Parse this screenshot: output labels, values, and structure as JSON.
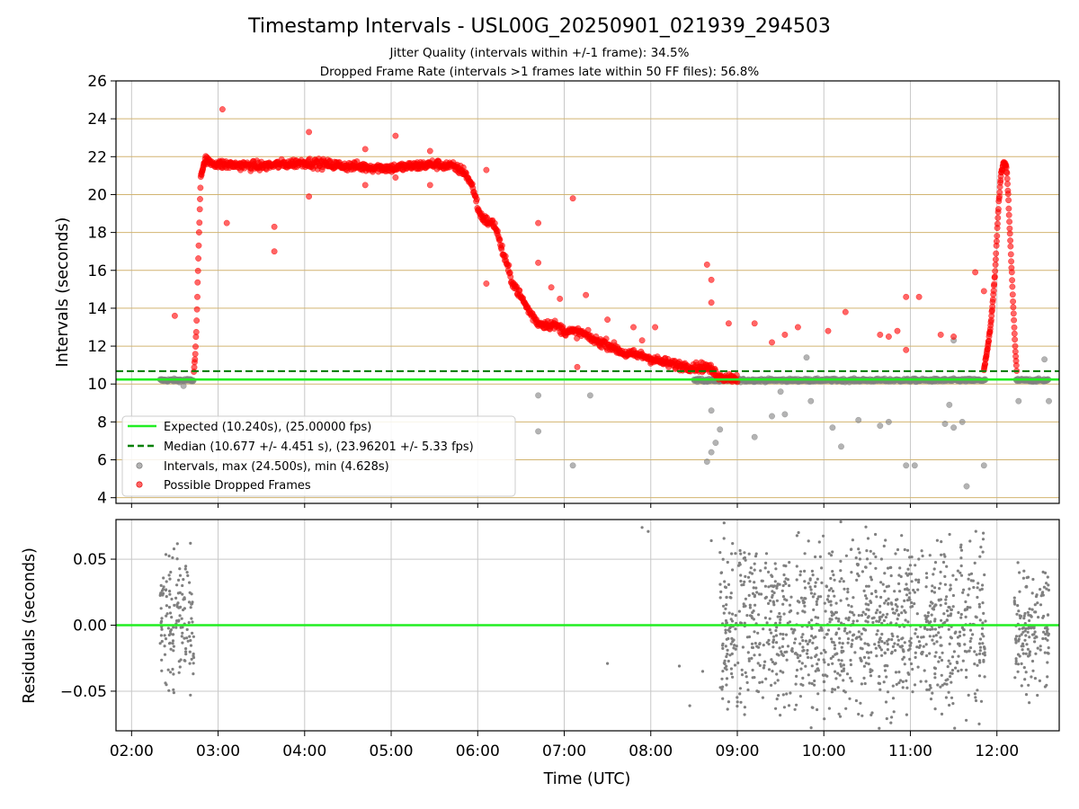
{
  "title": "Timestamp Intervals - USL00G_20250901_021939_294503",
  "subtitle_lines": [
    "Jitter Quality (intervals within +/-1 frame): 34.5%",
    "Dropped Frame Rate (intervals >1 frames late within 50 FF files): 56.8%"
  ],
  "colors": {
    "expected": "#22ee22",
    "median": "#008000",
    "intervals": "#808080",
    "dropped": "#ff0000",
    "hline_grid": "#d2b470",
    "grid": "#c8c8c8"
  },
  "chart_data": [
    {
      "type": "scatter",
      "panel": "intervals",
      "ylabel": "Intervals (seconds)",
      "xlabel": "",
      "xlim": [
        "02:00",
        "12:30"
      ],
      "ylim": [
        3.7,
        26
      ],
      "xticks": [
        "02:00",
        "03:00",
        "04:00",
        "05:00",
        "06:00",
        "07:00",
        "08:00",
        "09:00",
        "10:00",
        "11:00",
        "12:00"
      ],
      "yticks": [
        "4",
        "6",
        "8",
        "10",
        "12",
        "14",
        "16",
        "18",
        "20",
        "22",
        "24",
        "26"
      ],
      "horizontal_lines": [
        {
          "name": "Expected (10.240s), (25.00000 fps)",
          "y": 10.24,
          "style": "solid"
        },
        {
          "name": "Median (10.677 +/- 4.451 s), (23.96201 +/- 5.33 fps)",
          "y": 10.677,
          "style": "dashed"
        }
      ],
      "legend": {
        "placement": "lower-left",
        "entries": [
          "Expected (10.240s), (25.00000 fps)",
          "Median (10.677 +/- 4.451 s), (23.96201 +/- 5.33 fps)",
          "Intervals, max (24.500s), min (4.628s)",
          "Possible Dropped Frames"
        ]
      },
      "series": [
        {
          "name": "Intervals, max (24.500s), min (4.628s)",
          "description_profile": "normal intervals clustered near 10.2 s from 02:20-02:45 and 08:30-12:30 with scattered outliers",
          "outliers": [
            [
              2.6,
              9.9
            ],
            [
              6.7,
              9.4
            ],
            [
              6.7,
              7.5
            ],
            [
              7.1,
              5.7
            ],
            [
              7.3,
              9.4
            ],
            [
              8.7,
              8.6
            ],
            [
              8.65,
              5.9
            ],
            [
              8.7,
              6.4
            ],
            [
              8.75,
              6.9
            ],
            [
              8.8,
              7.6
            ],
            [
              9.2,
              7.2
            ],
            [
              9.4,
              8.3
            ],
            [
              9.55,
              8.4
            ],
            [
              9.5,
              9.6
            ],
            [
              9.8,
              11.4
            ],
            [
              9.85,
              9.1
            ],
            [
              10.1,
              7.7
            ],
            [
              10.2,
              6.7
            ],
            [
              10.4,
              8.1
            ],
            [
              10.65,
              7.8
            ],
            [
              10.75,
              8.0
            ],
            [
              10.95,
              5.7
            ],
            [
              11.05,
              5.7
            ],
            [
              11.4,
              7.9
            ],
            [
              11.45,
              8.9
            ],
            [
              11.5,
              7.7
            ],
            [
              11.65,
              4.6
            ],
            [
              11.85,
              5.7
            ],
            [
              12.25,
              9.1
            ],
            [
              12.6,
              9.1
            ],
            [
              12.55,
              11.3
            ],
            [
              11.5,
              12.3
            ],
            [
              11.6,
              8.0
            ]
          ]
        },
        {
          "name": "Possible Dropped Frames",
          "profile_points": [
            [
              2.72,
              10.6
            ],
            [
              2.73,
              11.2
            ],
            [
              2.74,
              12.0
            ],
            [
              2.75,
              13.0
            ],
            [
              2.76,
              14.6
            ],
            [
              2.77,
              16.3
            ],
            [
              2.78,
              18.0
            ],
            [
              2.79,
              19.5
            ],
            [
              2.8,
              21.0
            ],
            [
              2.85,
              21.8
            ],
            [
              3.0,
              21.6
            ],
            [
              3.5,
              21.5
            ],
            [
              4.0,
              21.7
            ],
            [
              4.5,
              21.5
            ],
            [
              5.0,
              21.4
            ],
            [
              5.5,
              21.6
            ],
            [
              5.7,
              21.5
            ],
            [
              5.85,
              21.2
            ],
            [
              5.95,
              20.3
            ],
            [
              6.02,
              19.0
            ],
            [
              6.1,
              18.6
            ],
            [
              6.2,
              18.4
            ],
            [
              6.3,
              16.8
            ],
            [
              6.4,
              15.4
            ],
            [
              6.5,
              14.6
            ],
            [
              6.6,
              13.8
            ],
            [
              6.7,
              13.2
            ],
            [
              6.9,
              13.1
            ],
            [
              7.0,
              12.8
            ],
            [
              7.2,
              12.7
            ],
            [
              7.35,
              12.3
            ],
            [
              7.5,
              12.1
            ],
            [
              7.7,
              11.6
            ],
            [
              7.9,
              11.5
            ],
            [
              8.1,
              11.2
            ],
            [
              8.3,
              11.0
            ],
            [
              8.5,
              10.9
            ],
            [
              8.65,
              10.9
            ],
            [
              8.8,
              10.4
            ],
            [
              9.0,
              10.3
            ]
          ],
          "profile_points_end": [
            [
              11.85,
              10.8
            ],
            [
              11.88,
              11.5
            ],
            [
              11.92,
              12.8
            ],
            [
              11.95,
              14.2
            ],
            [
              11.98,
              16.0
            ],
            [
              12.0,
              17.8
            ],
            [
              12.02,
              19.5
            ],
            [
              12.05,
              21.2
            ],
            [
              12.08,
              21.7
            ],
            [
              12.11,
              21.5
            ],
            [
              12.13,
              20.0
            ],
            [
              12.15,
              18.0
            ],
            [
              12.17,
              16.0
            ],
            [
              12.19,
              14.0
            ],
            [
              12.21,
              12.0
            ],
            [
              12.23,
              10.6
            ]
          ],
          "outliers": [
            [
              2.5,
              13.6
            ],
            [
              3.05,
              24.5
            ],
            [
              3.1,
              18.5
            ],
            [
              3.65,
              18.3
            ],
            [
              3.65,
              17.0
            ],
            [
              4.05,
              23.3
            ],
            [
              4.05,
              19.9
            ],
            [
              4.7,
              22.4
            ],
            [
              4.7,
              20.5
            ],
            [
              5.05,
              23.1
            ],
            [
              5.05,
              20.9
            ],
            [
              5.45,
              22.3
            ],
            [
              5.45,
              20.5
            ],
            [
              6.1,
              21.3
            ],
            [
              6.1,
              15.3
            ],
            [
              6.7,
              18.5
            ],
            [
              6.7,
              16.4
            ],
            [
              6.85,
              15.1
            ],
            [
              6.95,
              14.5
            ],
            [
              7.1,
              19.8
            ],
            [
              7.15,
              10.9
            ],
            [
              7.25,
              14.7
            ],
            [
              7.5,
              13.4
            ],
            [
              7.8,
              13.0
            ],
            [
              7.9,
              12.3
            ],
            [
              8.05,
              13.0
            ],
            [
              8.65,
              16.3
            ],
            [
              8.7,
              15.5
            ],
            [
              8.7,
              14.3
            ],
            [
              8.9,
              13.2
            ],
            [
              9.2,
              13.2
            ],
            [
              9.4,
              12.2
            ],
            [
              9.55,
              12.6
            ],
            [
              9.7,
              13.0
            ],
            [
              10.05,
              12.8
            ],
            [
              10.25,
              13.8
            ],
            [
              10.65,
              12.6
            ],
            [
              10.75,
              12.5
            ],
            [
              10.85,
              12.8
            ],
            [
              10.95,
              11.8
            ],
            [
              10.95,
              14.6
            ],
            [
              11.1,
              14.6
            ],
            [
              11.35,
              12.6
            ],
            [
              11.5,
              12.5
            ],
            [
              11.75,
              15.9
            ],
            [
              11.85,
              14.9
            ]
          ]
        }
      ]
    },
    {
      "type": "scatter",
      "panel": "residuals",
      "ylabel": "Residuals (seconds)",
      "xlabel": "Time (UTC)",
      "xlim": [
        "02:00",
        "12:30"
      ],
      "ylim": [
        -0.08,
        0.08
      ],
      "xticks": [
        "02:00",
        "03:00",
        "04:00",
        "05:00",
        "06:00",
        "07:00",
        "08:00",
        "09:00",
        "10:00",
        "11:00",
        "12:00"
      ],
      "yticks": [
        "0.05",
        "0.00",
        "−0.05"
      ],
      "horizontal_lines": [
        {
          "name": "zero",
          "y": 0.0,
          "style": "solid"
        }
      ],
      "series": [
        {
          "name": "residuals",
          "clusters": [
            {
              "x_range": [
                2.33,
                2.72
              ],
              "y_spread": 0.028
            },
            {
              "x_range": [
                8.8,
                11.87
              ],
              "y_spread": 0.035
            },
            {
              "x_range": [
                12.2,
                12.6
              ],
              "y_spread": 0.028
            }
          ],
          "isolated": [
            [
              7.5,
              -0.029
            ],
            [
              7.9,
              0.074
            ],
            [
              7.97,
              0.071
            ],
            [
              8.33,
              -0.031
            ],
            [
              8.45,
              -0.061
            ],
            [
              8.6,
              -0.035
            ],
            [
              2.68,
              0.062
            ],
            [
              2.68,
              -0.053
            ],
            [
              8.7,
              0.064
            ],
            [
              8.9,
              -0.058
            ]
          ]
        }
      ]
    }
  ]
}
